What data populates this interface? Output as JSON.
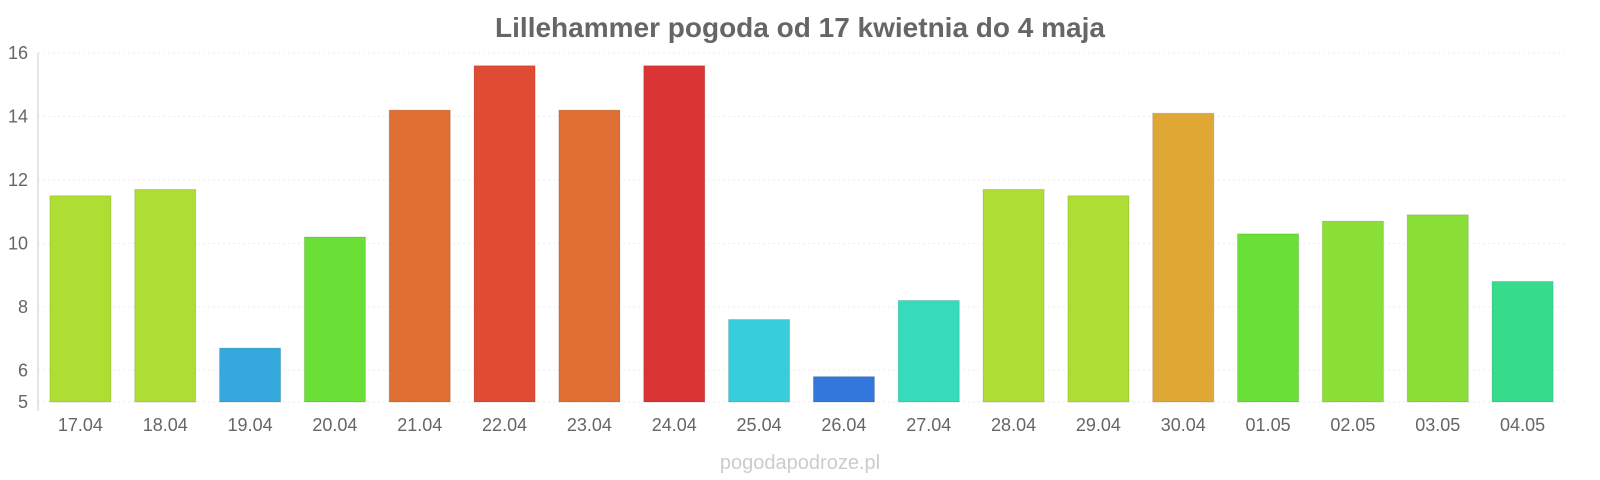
{
  "chart_data": {
    "type": "bar",
    "title": "Lillehammer pogoda od 17 kwietnia do 4 maja",
    "xlabel": "",
    "ylabel": "",
    "ylim": [
      5,
      16
    ],
    "yticks": [
      5,
      6,
      8,
      10,
      12,
      14,
      16
    ],
    "grid": true,
    "categories": [
      "17.04",
      "18.04",
      "19.04",
      "20.04",
      "21.04",
      "22.04",
      "23.04",
      "24.04",
      "25.04",
      "26.04",
      "27.04",
      "28.04",
      "29.04",
      "30.04",
      "01.05",
      "02.05",
      "03.05",
      "04.05"
    ],
    "values": [
      11.5,
      11.7,
      6.7,
      10.2,
      14.2,
      15.6,
      14.2,
      15.6,
      7.6,
      5.8,
      8.2,
      11.7,
      11.5,
      14.1,
      10.3,
      10.7,
      10.9,
      8.8
    ],
    "colors": [
      "#aedd33",
      "#aedd33",
      "#35a9dd",
      "#6adf36",
      "#df6f33",
      "#df4c33",
      "#df6f33",
      "#db3434",
      "#36cedd",
      "#3377dd",
      "#36dbbc",
      "#aedd33",
      "#aedd33",
      "#dfa733",
      "#6adf36",
      "#8adf36",
      "#8adf36",
      "#36db8c"
    ]
  },
  "watermark": "pogodapodroze.pl"
}
